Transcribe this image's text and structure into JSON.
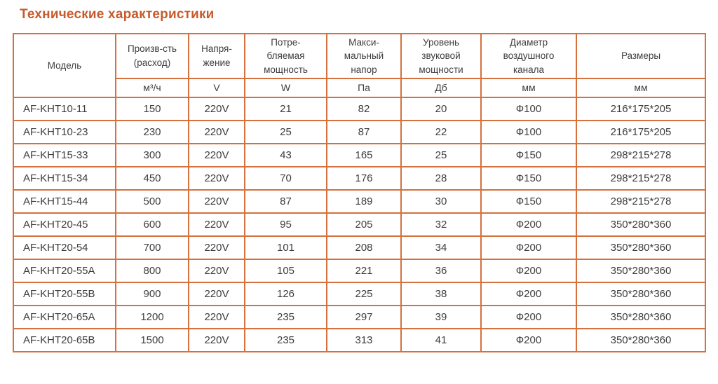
{
  "page": {
    "title": "Технические характеристики"
  },
  "colors": {
    "accent": "#c75b2d",
    "table_border": "#d4713d",
    "text": "#3d3d3d",
    "background": "#ffffff"
  },
  "table": {
    "columns": [
      {
        "label": "Модель",
        "unit": ""
      },
      {
        "label": "Произв-сть\n(расход)",
        "unit": "м³/ч"
      },
      {
        "label": "Напря-\nжение",
        "unit": "V"
      },
      {
        "label": "Потре-\nбляемая\nмощность",
        "unit": "W"
      },
      {
        "label": "Макси-\nмальный\nнапор",
        "unit": "Па"
      },
      {
        "label": "Уровень\nзвуковой\nмощности",
        "unit": "Дб"
      },
      {
        "label": "Диаметр\nвоздушного\nканала",
        "unit": "мм"
      },
      {
        "label": "Размеры",
        "unit": "мм"
      }
    ],
    "rows": [
      [
        "AF-KHT10-11",
        "150",
        "220V",
        "21",
        "82",
        "20",
        "Ф100",
        "216*175*205"
      ],
      [
        "AF-KHT10-23",
        "230",
        "220V",
        "25",
        "87",
        "22",
        "Ф100",
        "216*175*205"
      ],
      [
        "AF-KHT15-33",
        "300",
        "220V",
        "43",
        "165",
        "25",
        "Ф150",
        "298*215*278"
      ],
      [
        "AF-KHT15-34",
        "450",
        "220V",
        "70",
        "176",
        "28",
        "Ф150",
        "298*215*278"
      ],
      [
        "AF-KHT15-44",
        "500",
        "220V",
        "87",
        "189",
        "30",
        "Ф150",
        "298*215*278"
      ],
      [
        "AF-KHT20-45",
        "600",
        "220V",
        "95",
        "205",
        "32",
        "Ф200",
        "350*280*360"
      ],
      [
        "AF-KHT20-54",
        "700",
        "220V",
        "101",
        "208",
        "34",
        "Ф200",
        "350*280*360"
      ],
      [
        "AF-KHT20-55A",
        "800",
        "220V",
        "105",
        "221",
        "36",
        "Ф200",
        "350*280*360"
      ],
      [
        "AF-KHT20-55B",
        "900",
        "220V",
        "126",
        "225",
        "38",
        "Ф200",
        "350*280*360"
      ],
      [
        "AF-KHT20-65A",
        "1200",
        "220V",
        "235",
        "297",
        "39",
        "Ф200",
        "350*280*360"
      ],
      [
        "AF-KHT20-65B",
        "1500",
        "220V",
        "235",
        "313",
        "41",
        "Ф200",
        "350*280*360"
      ]
    ]
  }
}
